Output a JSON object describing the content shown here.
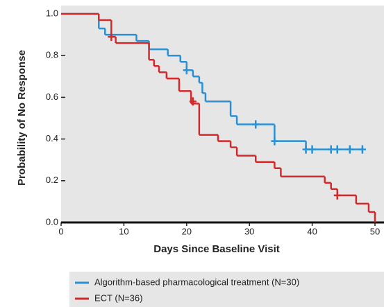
{
  "chart_data": {
    "type": "step",
    "x_label": "Days Since Baseline Visit",
    "y_label": "Probability of No Response",
    "xlim": [
      0,
      50
    ],
    "ylim": [
      0,
      1
    ],
    "xticks": [
      0,
      10,
      20,
      30,
      40,
      50
    ],
    "yticks": [
      {
        "value": 0,
        "label": "0.0"
      },
      {
        "value": 0.2,
        "label": "0.2"
      },
      {
        "value": 0.4,
        "label": "0.4"
      },
      {
        "value": 0.6,
        "label": "0.6"
      },
      {
        "value": 0.8,
        "label": "0.8"
      },
      {
        "value": 1,
        "label": "1.0"
      }
    ],
    "series": [
      {
        "name": "Algorithm-based pharmacological treatment (N=30)",
        "color": "#2b8fd1",
        "x": [
          0,
          6,
          7,
          12,
          14,
          17,
          19,
          20,
          21,
          22,
          22.5,
          23,
          27,
          28,
          34,
          39,
          48
        ],
        "values": [
          1,
          0.93,
          0.9,
          0.87,
          0.83,
          0.8,
          0.77,
          0.73,
          0.7,
          0.67,
          0.62,
          0.58,
          0.51,
          0.47,
          0.39,
          0.35,
          0.35
        ],
        "censor_x": [
          20,
          31,
          34,
          39,
          40,
          43,
          44,
          46,
          48
        ],
        "censor_y": [
          0.73,
          0.47,
          0.39,
          0.35,
          0.35,
          0.35,
          0.35,
          0.35,
          0.35
        ]
      },
      {
        "name": "ECT (N=36)",
        "color": "#d4292b",
        "x": [
          0,
          6,
          8,
          8.7,
          14,
          14.8,
          15.6,
          16.8,
          18.8,
          20.7,
          22,
          25,
          27,
          28,
          31,
          34,
          35,
          42,
          43,
          44,
          47,
          49,
          50
        ],
        "values": [
          1,
          0.97,
          0.89,
          0.86,
          0.78,
          0.75,
          0.72,
          0.69,
          0.63,
          0.57,
          0.42,
          0.39,
          0.36,
          0.32,
          0.29,
          0.26,
          0.22,
          0.19,
          0.16,
          0.13,
          0.09,
          0.05,
          0
        ],
        "censor_x": [
          8,
          21,
          44
        ],
        "censor_y": [
          0.89,
          0.58,
          0.13
        ]
      }
    ]
  }
}
